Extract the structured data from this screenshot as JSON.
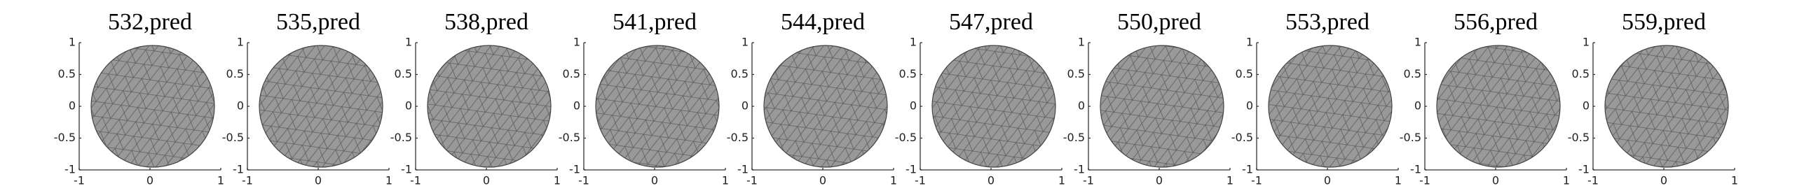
{
  "chart_data": [
    {
      "type": "mesh",
      "title": "532,pred",
      "xlim": [
        -1,
        1
      ],
      "ylim": [
        -1,
        1
      ],
      "xticks": [
        -1,
        0,
        1
      ],
      "yticks": [
        -1,
        -0.5,
        0,
        0.5,
        1
      ]
    },
    {
      "type": "mesh",
      "title": "535,pred",
      "xlim": [
        -1,
        1
      ],
      "ylim": [
        -1,
        1
      ],
      "xticks": [
        -1,
        0,
        1
      ],
      "yticks": [
        -1,
        -0.5,
        0,
        0.5,
        1
      ]
    },
    {
      "type": "mesh",
      "title": "538,pred",
      "xlim": [
        -1,
        1
      ],
      "ylim": [
        -1,
        1
      ],
      "xticks": [
        -1,
        0,
        1
      ],
      "yticks": [
        -1,
        -0.5,
        0,
        0.5,
        1
      ]
    },
    {
      "type": "mesh",
      "title": "541,pred",
      "xlim": [
        -1,
        1
      ],
      "ylim": [
        -1,
        1
      ],
      "xticks": [
        -1,
        0,
        1
      ],
      "yticks": [
        -1,
        -0.5,
        0,
        0.5,
        1
      ]
    },
    {
      "type": "mesh",
      "title": "544,pred",
      "xlim": [
        -1,
        1
      ],
      "ylim": [
        -1,
        1
      ],
      "xticks": [
        -1,
        0,
        1
      ],
      "yticks": [
        -1,
        -0.5,
        0,
        0.5,
        1
      ]
    },
    {
      "type": "mesh",
      "title": "547,pred",
      "xlim": [
        -1,
        1
      ],
      "ylim": [
        -1,
        1
      ],
      "xticks": [
        -1,
        0,
        1
      ],
      "yticks": [
        -1,
        -0.5,
        0,
        0.5,
        1
      ]
    },
    {
      "type": "mesh",
      "title": "550,pred",
      "xlim": [
        -1,
        1
      ],
      "ylim": [
        -1,
        1
      ],
      "xticks": [
        -1,
        0,
        1
      ],
      "yticks": [
        -1,
        -0.5,
        0,
        0.5,
        1
      ]
    },
    {
      "type": "mesh",
      "title": "553,pred",
      "xlim": [
        -1,
        1
      ],
      "ylim": [
        -1,
        1
      ],
      "xticks": [
        -1,
        0,
        1
      ],
      "yticks": [
        -1,
        -0.5,
        0,
        0.5,
        1
      ]
    },
    {
      "type": "mesh",
      "title": "556,pred",
      "xlim": [
        -1,
        1
      ],
      "ylim": [
        -1,
        1
      ],
      "xticks": [
        -1,
        0,
        1
      ],
      "yticks": [
        -1,
        -0.5,
        0,
        0.5,
        1
      ]
    },
    {
      "type": "mesh",
      "title": "559,pred",
      "xlim": [
        -1,
        1
      ],
      "ylim": [
        -1,
        1
      ],
      "xticks": [
        -1,
        0,
        1
      ],
      "yticks": [
        -1,
        -0.5,
        0,
        0.5,
        1
      ]
    }
  ]
}
